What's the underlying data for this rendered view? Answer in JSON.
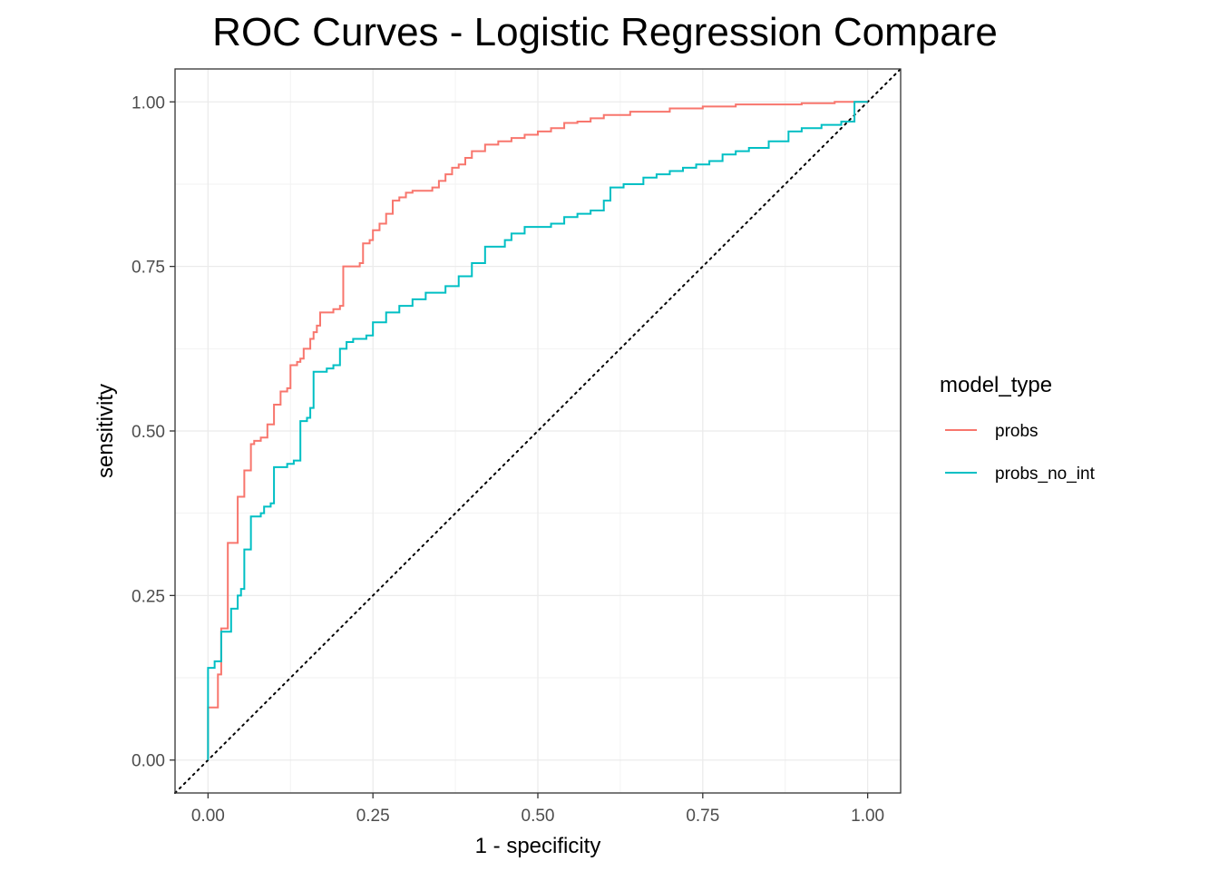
{
  "chart_data": {
    "type": "line",
    "title": "ROC Curves - Logistic Regression Compare",
    "xlabel": "1 - specificity",
    "ylabel": "sensitivity",
    "xlim": [
      -0.05,
      1.05
    ],
    "ylim": [
      -0.05,
      1.05
    ],
    "x_ticks": [
      0,
      0.25,
      0.5,
      0.75,
      1
    ],
    "x_tick_labels": [
      "0.00",
      "0.25",
      "0.50",
      "0.75",
      "1.00"
    ],
    "y_ticks": [
      0,
      0.25,
      0.5,
      0.75,
      1
    ],
    "y_tick_labels": [
      "0.00",
      "0.25",
      "0.50",
      "0.75",
      "1.00"
    ],
    "grid": true,
    "legend": {
      "title": "model_type",
      "position": "right"
    },
    "reference_line": {
      "style": "dotted",
      "color": "#000000",
      "from": [
        -0.05,
        -0.05
      ],
      "to": [
        1.05,
        1.05
      ]
    },
    "series": [
      {
        "name": "probs",
        "color": "#F8766D",
        "points": [
          [
            0,
            0
          ],
          [
            0,
            0.08
          ],
          [
            0.015,
            0.08
          ],
          [
            0.015,
            0.13
          ],
          [
            0.02,
            0.13
          ],
          [
            0.02,
            0.2
          ],
          [
            0.03,
            0.2
          ],
          [
            0.03,
            0.33
          ],
          [
            0.04,
            0.33
          ],
          [
            0.045,
            0.335
          ],
          [
            0.045,
            0.4
          ],
          [
            0.055,
            0.4
          ],
          [
            0.055,
            0.44
          ],
          [
            0.06,
            0.44
          ],
          [
            0.065,
            0.48
          ],
          [
            0.07,
            0.485
          ],
          [
            0.08,
            0.49
          ],
          [
            0.09,
            0.49
          ],
          [
            0.09,
            0.51
          ],
          [
            0.1,
            0.52
          ],
          [
            0.1,
            0.54
          ],
          [
            0.11,
            0.55
          ],
          [
            0.11,
            0.56
          ],
          [
            0.12,
            0.565
          ],
          [
            0.125,
            0.6
          ],
          [
            0.135,
            0.605
          ],
          [
            0.14,
            0.61
          ],
          [
            0.145,
            0.625
          ],
          [
            0.155,
            0.64
          ],
          [
            0.16,
            0.65
          ],
          [
            0.165,
            0.66
          ],
          [
            0.17,
            0.68
          ],
          [
            0.19,
            0.685
          ],
          [
            0.2,
            0.69
          ],
          [
            0.205,
            0.75
          ],
          [
            0.23,
            0.755
          ],
          [
            0.235,
            0.785
          ],
          [
            0.245,
            0.79
          ],
          [
            0.25,
            0.805
          ],
          [
            0.26,
            0.815
          ],
          [
            0.27,
            0.83
          ],
          [
            0.28,
            0.85
          ],
          [
            0.29,
            0.855
          ],
          [
            0.3,
            0.862
          ],
          [
            0.31,
            0.865
          ],
          [
            0.34,
            0.87
          ],
          [
            0.35,
            0.88
          ],
          [
            0.36,
            0.89
          ],
          [
            0.37,
            0.9
          ],
          [
            0.38,
            0.905
          ],
          [
            0.39,
            0.915
          ],
          [
            0.4,
            0.925
          ],
          [
            0.42,
            0.935
          ],
          [
            0.44,
            0.94
          ],
          [
            0.46,
            0.945
          ],
          [
            0.48,
            0.95
          ],
          [
            0.5,
            0.955
          ],
          [
            0.52,
            0.96
          ],
          [
            0.54,
            0.968
          ],
          [
            0.56,
            0.97
          ],
          [
            0.58,
            0.975
          ],
          [
            0.6,
            0.98
          ],
          [
            0.64,
            0.985
          ],
          [
            0.7,
            0.99
          ],
          [
            0.75,
            0.993
          ],
          [
            0.8,
            0.996
          ],
          [
            0.9,
            0.998
          ],
          [
            0.95,
            1
          ],
          [
            1,
            1
          ]
        ]
      },
      {
        "name": "probs_no_int",
        "color": "#00BFC4",
        "points": [
          [
            0,
            0
          ],
          [
            0,
            0.14
          ],
          [
            0.01,
            0.14
          ],
          [
            0.01,
            0.15
          ],
          [
            0.02,
            0.15
          ],
          [
            0.02,
            0.195
          ],
          [
            0.035,
            0.195
          ],
          [
            0.035,
            0.23
          ],
          [
            0.045,
            0.25
          ],
          [
            0.05,
            0.26
          ],
          [
            0.055,
            0.32
          ],
          [
            0.065,
            0.32
          ],
          [
            0.065,
            0.37
          ],
          [
            0.08,
            0.375
          ],
          [
            0.085,
            0.385
          ],
          [
            0.095,
            0.39
          ],
          [
            0.1,
            0.445
          ],
          [
            0.12,
            0.45
          ],
          [
            0.13,
            0.455
          ],
          [
            0.14,
            0.46
          ],
          [
            0.14,
            0.515
          ],
          [
            0.15,
            0.52
          ],
          [
            0.155,
            0.535
          ],
          [
            0.16,
            0.59
          ],
          [
            0.18,
            0.595
          ],
          [
            0.19,
            0.6
          ],
          [
            0.2,
            0.625
          ],
          [
            0.21,
            0.635
          ],
          [
            0.22,
            0.64
          ],
          [
            0.24,
            0.645
          ],
          [
            0.25,
            0.665
          ],
          [
            0.27,
            0.68
          ],
          [
            0.29,
            0.69
          ],
          [
            0.31,
            0.7
          ],
          [
            0.33,
            0.71
          ],
          [
            0.36,
            0.72
          ],
          [
            0.38,
            0.735
          ],
          [
            0.4,
            0.755
          ],
          [
            0.42,
            0.78
          ],
          [
            0.45,
            0.79
          ],
          [
            0.46,
            0.8
          ],
          [
            0.48,
            0.81
          ],
          [
            0.52,
            0.815
          ],
          [
            0.54,
            0.825
          ],
          [
            0.56,
            0.83
          ],
          [
            0.58,
            0.835
          ],
          [
            0.6,
            0.85
          ],
          [
            0.61,
            0.87
          ],
          [
            0.63,
            0.875
          ],
          [
            0.66,
            0.885
          ],
          [
            0.68,
            0.89
          ],
          [
            0.7,
            0.895
          ],
          [
            0.72,
            0.9
          ],
          [
            0.74,
            0.905
          ],
          [
            0.76,
            0.91
          ],
          [
            0.78,
            0.92
          ],
          [
            0.8,
            0.925
          ],
          [
            0.82,
            0.93
          ],
          [
            0.85,
            0.94
          ],
          [
            0.88,
            0.955
          ],
          [
            0.9,
            0.96
          ],
          [
            0.93,
            0.965
          ],
          [
            0.96,
            0.97
          ],
          [
            0.98,
            0.98
          ],
          [
            0.98,
            1
          ],
          [
            1,
            1
          ]
        ]
      }
    ]
  }
}
